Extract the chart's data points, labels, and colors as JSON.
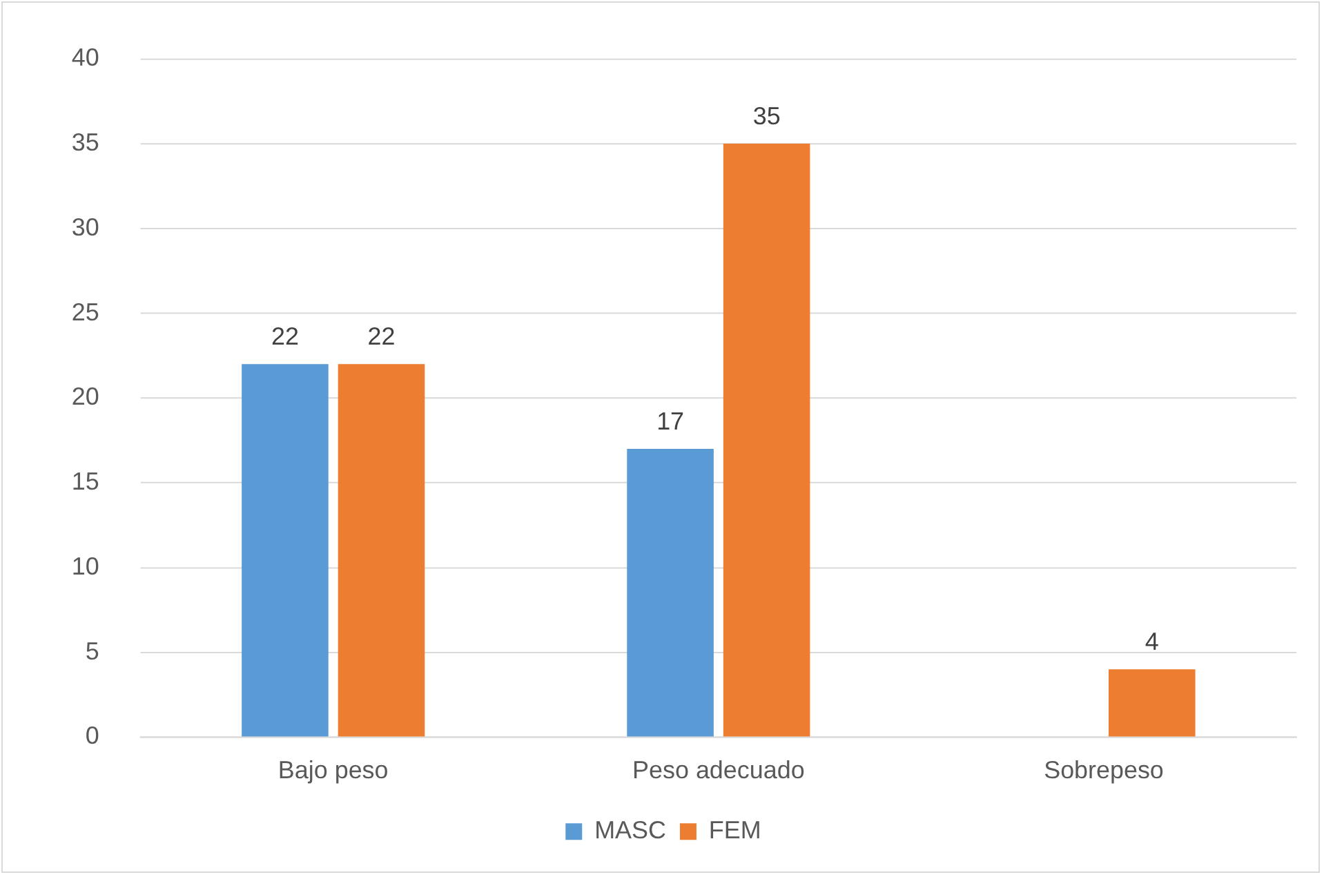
{
  "chart_data": {
    "type": "bar",
    "categories": [
      "Bajo peso",
      "Peso adecuado",
      "Sobrepeso"
    ],
    "series": [
      {
        "name": "MASC",
        "color": "#5b9bd5",
        "values": [
          22,
          17,
          0
        ],
        "value_labels": [
          "22",
          "17",
          null
        ]
      },
      {
        "name": "FEM",
        "color": "#ed7d31",
        "values": [
          22,
          35,
          4
        ],
        "value_labels": [
          "22",
          "35",
          "4"
        ]
      }
    ],
    "ylim": [
      0,
      40
    ],
    "yticks": [
      0,
      5,
      10,
      15,
      20,
      25,
      30,
      35,
      40
    ],
    "grid": "y",
    "legend": "bottom"
  }
}
